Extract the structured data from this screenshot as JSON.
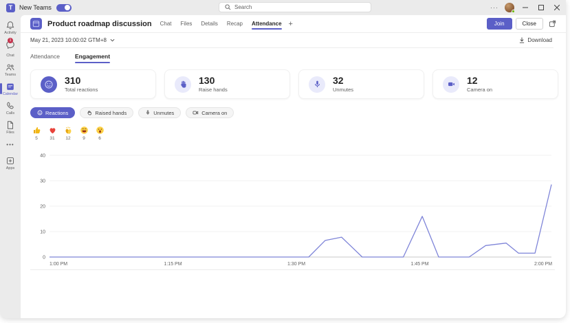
{
  "titlebar": {
    "app_label": "New Teams",
    "search_placeholder": "Search",
    "more_glyph": "···"
  },
  "sidebar": {
    "items": [
      {
        "label": "Activity"
      },
      {
        "label": "Chat",
        "badge": "1"
      },
      {
        "label": "Teams"
      },
      {
        "label": "Calendar",
        "active": true
      },
      {
        "label": "Calls"
      },
      {
        "label": "Files"
      },
      {
        "label": "•••"
      },
      {
        "label": "Apps"
      }
    ]
  },
  "header": {
    "title": "Product roadmap discussion",
    "tabs": [
      {
        "label": "Chat"
      },
      {
        "label": "Files"
      },
      {
        "label": "Details"
      },
      {
        "label": "Recap"
      },
      {
        "label": "Attendance",
        "active": true
      }
    ],
    "add_tab": "+",
    "join_label": "Join",
    "close_label": "Close"
  },
  "meeting": {
    "datetime": "May 21, 2023 10:00:02 GTM+8",
    "download_label": "Download"
  },
  "subtabs": {
    "attendance": "Attendance",
    "engagement": "Engagement"
  },
  "stats": [
    {
      "value": "310",
      "label": "Total reactions",
      "icon": "reactions-icon"
    },
    {
      "value": "130",
      "label": "Raise hands",
      "icon": "raise-hand-icon"
    },
    {
      "value": "32",
      "label": "Unmutes",
      "icon": "mic-icon"
    },
    {
      "value": "12",
      "label": "Camera on",
      "icon": "camera-icon"
    }
  ],
  "filters": [
    {
      "label": "Reactions",
      "active": true
    },
    {
      "label": "Raised hands"
    },
    {
      "label": "Unmutes"
    },
    {
      "label": "Camera on"
    }
  ],
  "reaction_counts": [
    {
      "emoji": "like",
      "count": "5"
    },
    {
      "emoji": "heart",
      "count": "31"
    },
    {
      "emoji": "applause",
      "count": "12"
    },
    {
      "emoji": "laugh",
      "count": "9"
    },
    {
      "emoji": "surprised",
      "count": "6"
    }
  ],
  "chart_data": {
    "type": "line",
    "series_name": "Reactions",
    "x_unit": "minutes after 1:00 PM",
    "points": [
      [
        0,
        0
      ],
      [
        28,
        0
      ],
      [
        31.5,
        0
      ],
      [
        33.5,
        6.5
      ],
      [
        35.5,
        7.8
      ],
      [
        38,
        0
      ],
      [
        43,
        0
      ],
      [
        45.3,
        16
      ],
      [
        47.3,
        0
      ],
      [
        51,
        0
      ],
      [
        53,
        4.5
      ],
      [
        55.5,
        5.5
      ],
      [
        57,
        1.5
      ],
      [
        59,
        1.5
      ],
      [
        61,
        28.5
      ]
    ],
    "x_ticks": [
      {
        "minute": 0,
        "label": "1:00 PM"
      },
      {
        "minute": 15,
        "label": "1:15 PM"
      },
      {
        "minute": 30,
        "label": "1:30 PM"
      },
      {
        "minute": 45,
        "label": "1:45 PM"
      },
      {
        "minute": 60,
        "label": "2:00 PM"
      }
    ],
    "y_ticks": [
      0,
      10,
      20,
      30,
      40
    ],
    "ylim": [
      0,
      40
    ],
    "xlim_minutes": [
      0,
      61
    ],
    "grid": "horizontal-faint",
    "line_color": "#7e84d8"
  },
  "colors": {
    "accent": "#5b5fc7",
    "chrome": "#ebebeb",
    "badge_red": "#c4314b",
    "presence_green": "#6bb700"
  }
}
